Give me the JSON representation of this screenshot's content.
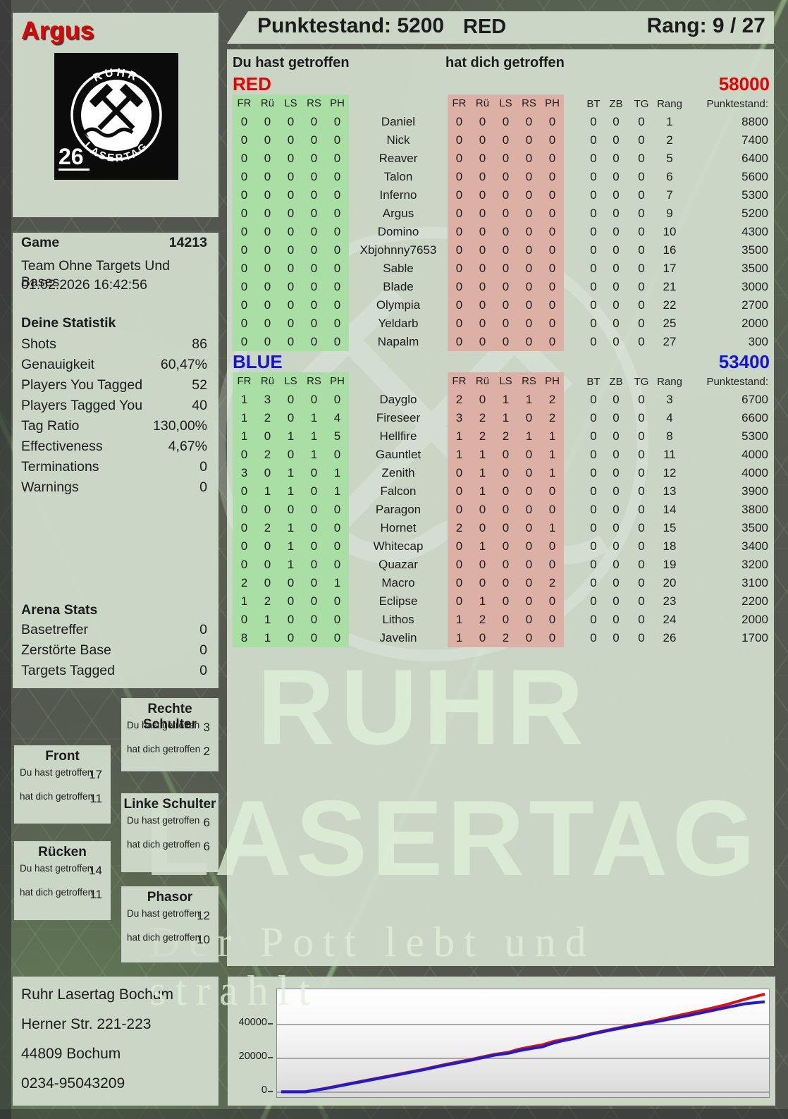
{
  "header": {
    "player": "Argus",
    "score_label": "Punktestand: 5200",
    "team": "RED",
    "rank_label": "Rang: 9 / 27"
  },
  "logo": {
    "arc_top": "RUHR",
    "arc_bottom": "LASERTAG",
    "badge": "26"
  },
  "game_info": {
    "label": "Game",
    "number": "14213",
    "mode": "Team Ohne Targets Und Bases",
    "datetime": "01.02.2026 16:42:56"
  },
  "stats": {
    "title": "Deine Statistik",
    "rows": [
      {
        "label": "Shots",
        "value": "86"
      },
      {
        "label": "Genauigkeit",
        "value": "60,47%"
      },
      {
        "label": "Players You Tagged",
        "value": "52"
      },
      {
        "label": "Players Tagged You",
        "value": "40"
      },
      {
        "label": "Tag Ratio",
        "value": "130,00%"
      },
      {
        "label": "Effectiveness",
        "value": "4,67%"
      },
      {
        "label": "Terminations",
        "value": "0"
      },
      {
        "label": "Warnings",
        "value": "0"
      }
    ]
  },
  "arena": {
    "title": "Arena Stats",
    "rows": [
      {
        "label": "Basetreffer",
        "value": "0"
      },
      {
        "label": "Zerstörte Base",
        "value": "0"
      },
      {
        "label": "Targets Tagged",
        "value": "0"
      }
    ]
  },
  "score_table": {
    "you_header": "Du hast getroffen",
    "them_header": "hat dich getroffen",
    "hit_cols": [
      "FR",
      "Rü",
      "LS",
      "RS",
      "PH"
    ],
    "extra_cols": [
      "BT",
      "ZB",
      "TG",
      "Rang",
      "Punktestand:"
    ],
    "colors": {
      "green_cell": "#a9dfa4",
      "red_cell": "#ddb0a6",
      "red_team": "#e60000",
      "blue_team": "#1512dc"
    },
    "teams": [
      {
        "name": "RED",
        "score": "58000",
        "color": "#e60000",
        "players": [
          {
            "name": "Daniel",
            "you": [
              0,
              0,
              0,
              0,
              0
            ],
            "them": [
              0,
              0,
              0,
              0,
              0
            ],
            "bt": 0,
            "zb": 0,
            "tg": 0,
            "rang": 1,
            "points": 8800
          },
          {
            "name": "Nick",
            "you": [
              0,
              0,
              0,
              0,
              0
            ],
            "them": [
              0,
              0,
              0,
              0,
              0
            ],
            "bt": 0,
            "zb": 0,
            "tg": 0,
            "rang": 2,
            "points": 7400
          },
          {
            "name": "Reaver",
            "you": [
              0,
              0,
              0,
              0,
              0
            ],
            "them": [
              0,
              0,
              0,
              0,
              0
            ],
            "bt": 0,
            "zb": 0,
            "tg": 0,
            "rang": 5,
            "points": 6400
          },
          {
            "name": "Talon",
            "you": [
              0,
              0,
              0,
              0,
              0
            ],
            "them": [
              0,
              0,
              0,
              0,
              0
            ],
            "bt": 0,
            "zb": 0,
            "tg": 0,
            "rang": 6,
            "points": 5600
          },
          {
            "name": "Inferno",
            "you": [
              0,
              0,
              0,
              0,
              0
            ],
            "them": [
              0,
              0,
              0,
              0,
              0
            ],
            "bt": 0,
            "zb": 0,
            "tg": 0,
            "rang": 7,
            "points": 5300
          },
          {
            "name": "Argus",
            "you": [
              0,
              0,
              0,
              0,
              0
            ],
            "them": [
              0,
              0,
              0,
              0,
              0
            ],
            "bt": 0,
            "zb": 0,
            "tg": 0,
            "rang": 9,
            "points": 5200
          },
          {
            "name": "Domino",
            "you": [
              0,
              0,
              0,
              0,
              0
            ],
            "them": [
              0,
              0,
              0,
              0,
              0
            ],
            "bt": 0,
            "zb": 0,
            "tg": 0,
            "rang": 10,
            "points": 4300
          },
          {
            "name": "Xbjohnny7653",
            "you": [
              0,
              0,
              0,
              0,
              0
            ],
            "them": [
              0,
              0,
              0,
              0,
              0
            ],
            "bt": 0,
            "zb": 0,
            "tg": 0,
            "rang": 16,
            "points": 3500
          },
          {
            "name": "Sable",
            "you": [
              0,
              0,
              0,
              0,
              0
            ],
            "them": [
              0,
              0,
              0,
              0,
              0
            ],
            "bt": 0,
            "zb": 0,
            "tg": 0,
            "rang": 17,
            "points": 3500
          },
          {
            "name": "Blade",
            "you": [
              0,
              0,
              0,
              0,
              0
            ],
            "them": [
              0,
              0,
              0,
              0,
              0
            ],
            "bt": 0,
            "zb": 0,
            "tg": 0,
            "rang": 21,
            "points": 3000
          },
          {
            "name": "Olympia",
            "you": [
              0,
              0,
              0,
              0,
              0
            ],
            "them": [
              0,
              0,
              0,
              0,
              0
            ],
            "bt": 0,
            "zb": 0,
            "tg": 0,
            "rang": 22,
            "points": 2700
          },
          {
            "name": "Yeldarb",
            "you": [
              0,
              0,
              0,
              0,
              0
            ],
            "them": [
              0,
              0,
              0,
              0,
              0
            ],
            "bt": 0,
            "zb": 0,
            "tg": 0,
            "rang": 25,
            "points": 2000
          },
          {
            "name": "Napalm",
            "you": [
              0,
              0,
              0,
              0,
              0
            ],
            "them": [
              0,
              0,
              0,
              0,
              0
            ],
            "bt": 0,
            "zb": 0,
            "tg": 0,
            "rang": 27,
            "points": 300
          }
        ]
      },
      {
        "name": "BLUE",
        "score": "53400",
        "color": "#1512dc",
        "players": [
          {
            "name": "Dayglo",
            "you": [
              1,
              3,
              0,
              0,
              0
            ],
            "them": [
              2,
              0,
              1,
              1,
              2
            ],
            "bt": 0,
            "zb": 0,
            "tg": 0,
            "rang": 3,
            "points": 6700
          },
          {
            "name": "Fireseer",
            "you": [
              1,
              2,
              0,
              1,
              4
            ],
            "them": [
              3,
              2,
              1,
              0,
              2
            ],
            "bt": 0,
            "zb": 0,
            "tg": 0,
            "rang": 4,
            "points": 6600
          },
          {
            "name": "Hellfire",
            "you": [
              1,
              0,
              1,
              1,
              5
            ],
            "them": [
              1,
              2,
              2,
              1,
              1
            ],
            "bt": 0,
            "zb": 0,
            "tg": 0,
            "rang": 8,
            "points": 5300
          },
          {
            "name": "Gauntlet",
            "you": [
              0,
              2,
              0,
              1,
              0
            ],
            "them": [
              1,
              1,
              0,
              0,
              1
            ],
            "bt": 0,
            "zb": 0,
            "tg": 0,
            "rang": 11,
            "points": 4000
          },
          {
            "name": "Zenith",
            "you": [
              3,
              0,
              1,
              0,
              1
            ],
            "them": [
              0,
              1,
              0,
              0,
              1
            ],
            "bt": 0,
            "zb": 0,
            "tg": 0,
            "rang": 12,
            "points": 4000
          },
          {
            "name": "Falcon",
            "you": [
              0,
              1,
              1,
              0,
              1
            ],
            "them": [
              0,
              1,
              0,
              0,
              0
            ],
            "bt": 0,
            "zb": 0,
            "tg": 0,
            "rang": 13,
            "points": 3900
          },
          {
            "name": "Paragon",
            "you": [
              0,
              0,
              0,
              0,
              0
            ],
            "them": [
              0,
              0,
              0,
              0,
              0
            ],
            "bt": 0,
            "zb": 0,
            "tg": 0,
            "rang": 14,
            "points": 3800
          },
          {
            "name": "Hornet",
            "you": [
              0,
              2,
              1,
              0,
              0
            ],
            "them": [
              2,
              0,
              0,
              0,
              1
            ],
            "bt": 0,
            "zb": 0,
            "tg": 0,
            "rang": 15,
            "points": 3500
          },
          {
            "name": "Whitecap",
            "you": [
              0,
              0,
              1,
              0,
              0
            ],
            "them": [
              0,
              1,
              0,
              0,
              0
            ],
            "bt": 0,
            "zb": 0,
            "tg": 0,
            "rang": 18,
            "points": 3400
          },
          {
            "name": "Quazar",
            "you": [
              0,
              0,
              1,
              0,
              0
            ],
            "them": [
              0,
              0,
              0,
              0,
              0
            ],
            "bt": 0,
            "zb": 0,
            "tg": 0,
            "rang": 19,
            "points": 3200
          },
          {
            "name": "Macro",
            "you": [
              2,
              0,
              0,
              0,
              1
            ],
            "them": [
              0,
              0,
              0,
              0,
              2
            ],
            "bt": 0,
            "zb": 0,
            "tg": 0,
            "rang": 20,
            "points": 3100
          },
          {
            "name": "Eclipse",
            "you": [
              1,
              2,
              0,
              0,
              0
            ],
            "them": [
              0,
              1,
              0,
              0,
              0
            ],
            "bt": 0,
            "zb": 0,
            "tg": 0,
            "rang": 23,
            "points": 2200
          },
          {
            "name": "Lithos",
            "you": [
              0,
              1,
              0,
              0,
              0
            ],
            "them": [
              1,
              2,
              0,
              0,
              0
            ],
            "bt": 0,
            "zb": 0,
            "tg": 0,
            "rang": 24,
            "points": 2000
          },
          {
            "name": "Javelin",
            "you": [
              8,
              1,
              0,
              0,
              0
            ],
            "them": [
              1,
              0,
              2,
              0,
              0
            ],
            "bt": 0,
            "zb": 0,
            "tg": 0,
            "rang": 26,
            "points": 1700
          }
        ]
      }
    ]
  },
  "body_parts": {
    "you_label": "Du hast getroffen",
    "them_label": "hat dich getroffen",
    "boxes": [
      {
        "id": "rechte-schulter",
        "title": "Rechte Schulter",
        "you": "3",
        "them": "2"
      },
      {
        "id": "front",
        "title": "Front",
        "you": "17",
        "them": "11"
      },
      {
        "id": "linke-schulter",
        "title": "Linke Schulter",
        "you": "6",
        "them": "6"
      },
      {
        "id": "ruecken",
        "title": "Rücken",
        "you": "14",
        "them": "11"
      },
      {
        "id": "phasor",
        "title": "Phasor",
        "you": "12",
        "them": "10"
      }
    ]
  },
  "watermark": {
    "line1": "RUHR",
    "line2": "LASERTAG",
    "tagline": "Der Pott lebt und strahlt"
  },
  "address": {
    "lines": [
      "Ruhr Lasertag Bochum",
      "Herner Str. 221-223",
      "44809 Bochum",
      "0234-95043209"
    ]
  },
  "chart_data": {
    "type": "line",
    "title": "",
    "xlabel": "",
    "ylabel": "",
    "ylim": [
      0,
      61000
    ],
    "yticks": [
      0,
      20000,
      40000
    ],
    "grid": true,
    "x": [
      0,
      5,
      9,
      14,
      19,
      24,
      29,
      34,
      39,
      44,
      47,
      49,
      52,
      54,
      56,
      58,
      61,
      64,
      68,
      72,
      76,
      80,
      84,
      88,
      92,
      96,
      100
    ],
    "series": [
      {
        "name": "RED",
        "color": "#e01010",
        "values": [
          300,
          300,
          2200,
          5000,
          7800,
          10500,
          13300,
          16400,
          19200,
          22300,
          23600,
          25300,
          27000,
          28000,
          29800,
          31000,
          32500,
          34500,
          37000,
          39300,
          41500,
          44000,
          46500,
          49000,
          51700,
          55000,
          58000
        ]
      },
      {
        "name": "BLUE",
        "color": "#1c1cd8",
        "values": [
          200,
          200,
          2000,
          4800,
          7500,
          10200,
          13000,
          16000,
          18800,
          21800,
          23000,
          24400,
          26000,
          26800,
          28800,
          30300,
          32000,
          34200,
          36600,
          38800,
          40800,
          43000,
          45200,
          47600,
          50000,
          52300,
          53400
        ]
      }
    ]
  }
}
